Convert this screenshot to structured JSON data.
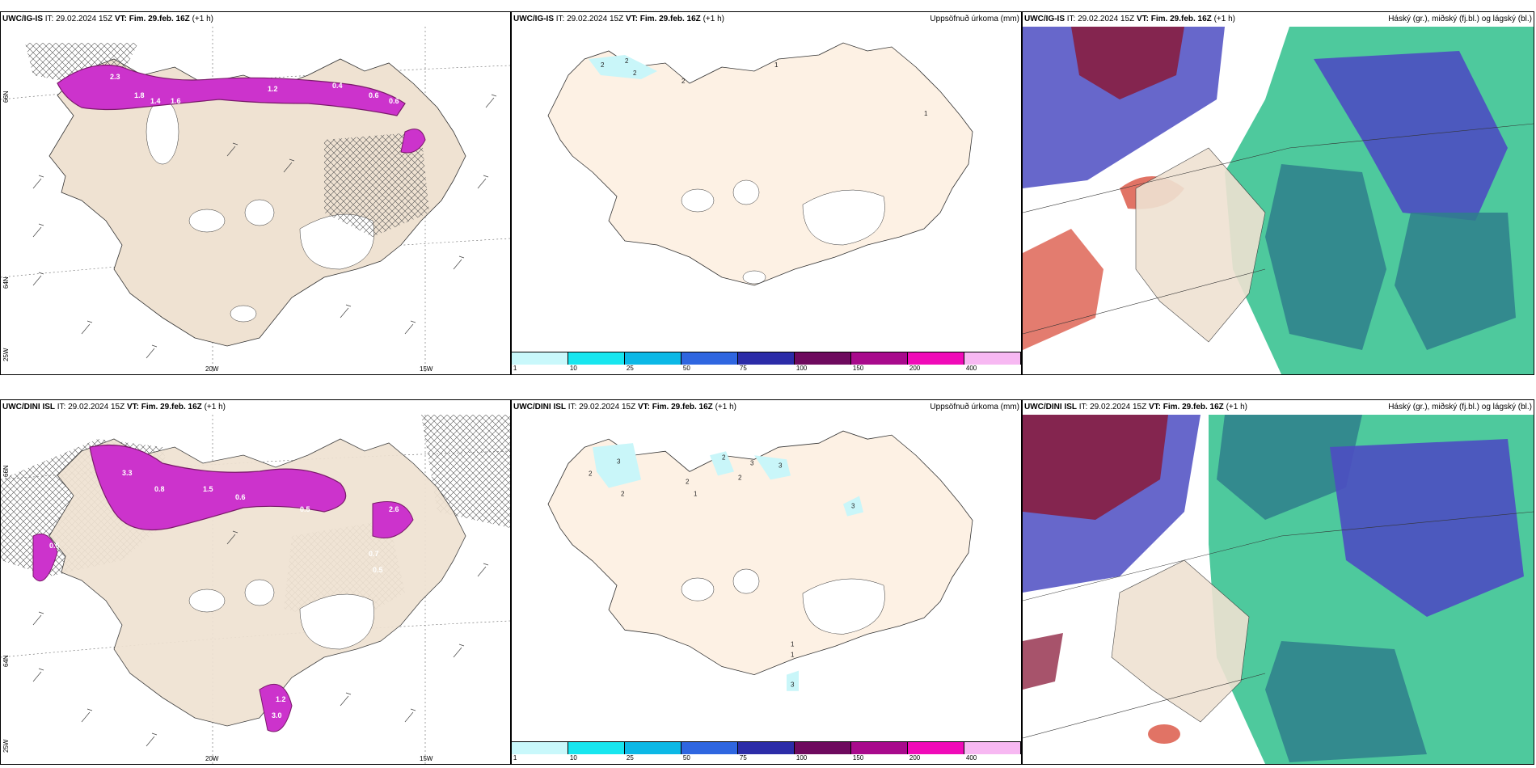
{
  "colors": {
    "land": "#efe2d2",
    "land_light": "#fdf1e4",
    "ice": "#ffffff",
    "precip_magenta": "#cc33cc",
    "precip_dark": "#7a1a6a",
    "light_cyan": "#c9f6f9",
    "cloud_blue": "#4c4cc2",
    "cloud_teal": "#2f7f8c",
    "cloud_green": "#2fc08c",
    "cloud_red": "#d9503f",
    "cloud_maroon": "#8a1a3a"
  },
  "panels": [
    {
      "model": "UWC/IG-IS",
      "it_label": "IT:",
      "it_value": "29.02.2024 15Z",
      "vt_label": "VT:",
      "vt_value": "Fim. 29.feb. 16Z",
      "lead": "(+1 h)",
      "right": ""
    },
    {
      "model": "UWC/IG-IS",
      "it_label": "IT:",
      "it_value": "29.02.2024 15Z",
      "vt_label": "VT:",
      "vt_value": "Fim. 29.feb. 16Z",
      "lead": "(+1 h)",
      "right": "Uppsöfnuð úrkoma (mm)"
    },
    {
      "model": "UWC/IG-IS",
      "it_label": "IT:",
      "it_value": "29.02.2024 15Z",
      "vt_label": "VT:",
      "vt_value": "Fim. 29.feb. 16Z",
      "lead": "(+1 h)",
      "right": "Háský (gr.), miðský (fj.bl.) og lágský (bl.)"
    },
    {
      "model": "UWC/DINI ISL",
      "it_label": "IT:",
      "it_value": "29.02.2024 15Z",
      "vt_label": "VT:",
      "vt_value": "Fim. 29.feb. 16Z",
      "lead": "(+1 h)",
      "right": ""
    },
    {
      "model": "UWC/DINI ISL",
      "it_label": "IT:",
      "it_value": "29.02.2024 15Z",
      "vt_label": "VT:",
      "vt_value": "Fim. 29.feb. 16Z",
      "lead": "(+1 h)",
      "right": "Uppsöfnuð úrkoma (mm)"
    },
    {
      "model": "UWC/DINI ISL",
      "it_label": "IT:",
      "it_value": "29.02.2024 15Z",
      "vt_label": "VT:",
      "vt_value": "Fim. 29.feb. 16Z",
      "lead": "(+1 h)",
      "right": "Háský (gr.), miðský (fj.bl.) og lágský (bl.)"
    }
  ],
  "axis": {
    "lon_20": "20W",
    "lon_15": "15W",
    "lat_66": "66N",
    "lat_64": "64N",
    "lon_25": "25W"
  },
  "legend": {
    "ticks": [
      "1",
      "10",
      "25",
      "50",
      "75",
      "100",
      "150",
      "200",
      "400"
    ],
    "colors": [
      "#c9f8fb",
      "#18e6ef",
      "#0cb8e6",
      "#2f66e0",
      "#2c2ca8",
      "#6e0a5e",
      "#a80a8c",
      "#f00ab8",
      "#f7b8f2"
    ]
  },
  "precip_labels_top": [
    "2",
    "2",
    "2",
    "2",
    "1",
    "1"
  ],
  "precip_labels_bottom": [
    "2",
    "3",
    "2",
    "2",
    "1",
    "2",
    "3",
    "2",
    "3",
    "3",
    "1",
    "1",
    "3"
  ],
  "wind_values_top": [
    "2.3",
    "1.8",
    "1.4",
    "1.6",
    "0.4",
    "0.6",
    "0.6",
    "1.2"
  ],
  "wind_values_bottom": [
    "3.3",
    "0.8",
    "1.5",
    "0.6",
    "0.5",
    "0.5",
    "2.6",
    "3.0",
    "1.2",
    "0.5",
    "0.7"
  ]
}
